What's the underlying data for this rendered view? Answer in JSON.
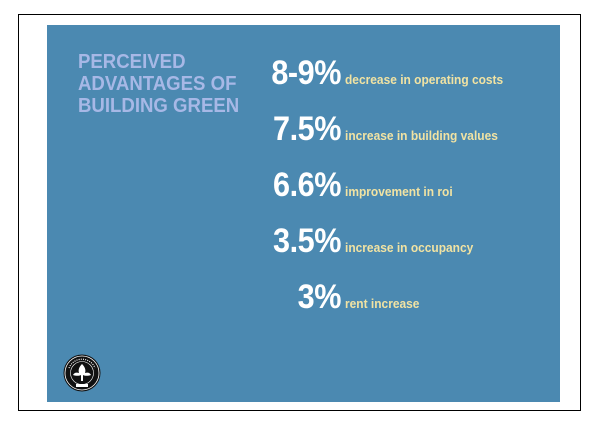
{
  "title": {
    "lines": [
      "PERCEIVED",
      "ADVANTAGES OF",
      "BUILDING GREEN"
    ]
  },
  "stats": [
    {
      "value": "8-9%",
      "description": "decrease in operating costs"
    },
    {
      "value": "7.5%",
      "description": "increase in building values"
    },
    {
      "value": "6.6%",
      "description": "improvement in roi"
    },
    {
      "value": "3.5%",
      "description": "increase in occupancy"
    },
    {
      "value": "3%",
      "description": "rent increase"
    }
  ],
  "logo": {
    "text_top": "U.S. GREEN BUILDING COUNCIL",
    "text_bottom": "USGBC"
  },
  "colors": {
    "slide_background": "#4b89b1",
    "title": "#a7b8e6",
    "value": "#ffffff",
    "description": "#f1e3a3"
  }
}
